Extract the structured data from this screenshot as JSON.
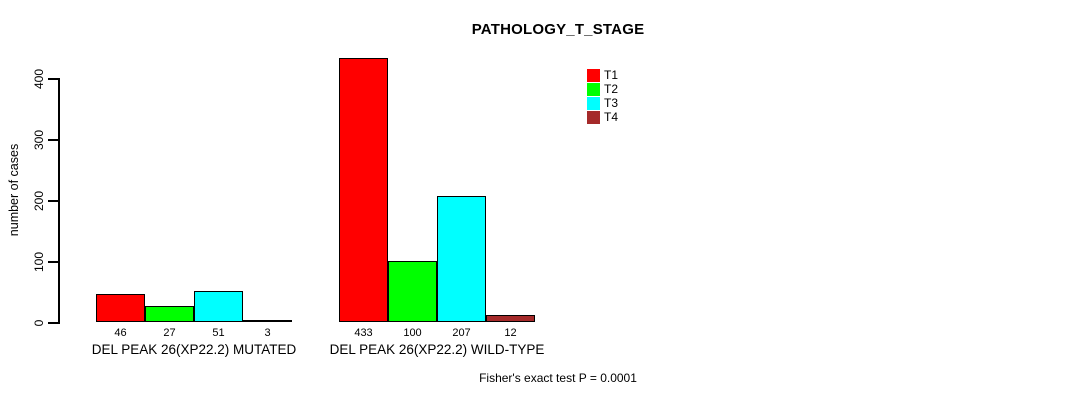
{
  "chart_data": {
    "type": "bar",
    "title": "PATHOLOGY_T_STAGE",
    "ylabel": "number of cases",
    "xlabel": "",
    "ylim": [
      0,
      440
    ],
    "yticks": [
      0,
      100,
      200,
      300,
      400
    ],
    "grid": false,
    "legend_position": "top-right",
    "categories": [
      "DEL PEAK 26(XP22.2) MUTATED",
      "DEL PEAK 26(XP22.2) WILD-TYPE"
    ],
    "series": [
      {
        "name": "T1",
        "color": "#FF0000",
        "values": [
          46,
          433
        ]
      },
      {
        "name": "T2",
        "color": "#00FF00",
        "values": [
          27,
          100
        ]
      },
      {
        "name": "T3",
        "color": "#00FFFF",
        "values": [
          51,
          207
        ]
      },
      {
        "name": "T4",
        "color": "#A52A2A",
        "values": [
          3,
          12
        ]
      }
    ],
    "bar_value_labels": [
      [
        "46",
        "27",
        "51",
        "3"
      ],
      [
        "433",
        "100",
        "207",
        "12"
      ]
    ],
    "annotation": "Fisher's exact test P = 0.0001"
  }
}
